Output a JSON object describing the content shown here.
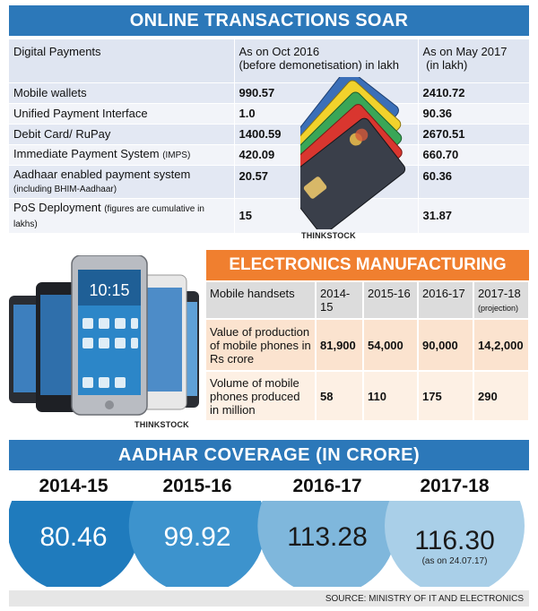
{
  "digital_payments": {
    "title": "ONLINE TRANSACTIONS SOAR",
    "header": {
      "col1": "Digital Payments",
      "col2_line1": "As on Oct 2016",
      "col2_line2": "(before demonetisation) in lakh",
      "col3_line1": "As on May 2017",
      "col3_line2": " (in lakh)"
    },
    "rows": [
      {
        "label": "Mobile wallets",
        "sub": "",
        "oct2016": "990.57",
        "may2017": "2410.72"
      },
      {
        "label": "Unified Payment Interface",
        "sub": "",
        "oct2016": "1.0",
        "may2017": "90.36"
      },
      {
        "label": "Debit Card/ RuPay",
        "sub": "",
        "oct2016": "1400.59",
        "may2017": "2670.51"
      },
      {
        "label": "Immediate Payment System",
        "sub": "(IMPS)",
        "oct2016": "420.09",
        "may2017": "660.70"
      },
      {
        "label": "Aadhaar enabled payment system",
        "sub": "(including BHIM-Aadhaar)",
        "oct2016": "20.57",
        "may2017": "60.36"
      },
      {
        "label": "PoS Deployment",
        "sub": "(figures are cumulative in lakhs)",
        "oct2016": "15",
        "may2017": "31.87"
      }
    ],
    "photo_credit": "THINKSTOCK"
  },
  "electronics": {
    "title": "ELECTRONICS MANUFACTURING",
    "photo_credit": "THINKSTOCK",
    "header": {
      "col1": "Mobile handsets",
      "years": [
        "2014-15",
        "2015-16",
        "2016-17",
        "2017-18"
      ],
      "projection_note": "(projection)"
    },
    "rows": [
      {
        "label": "Value of production of mobile phones in Rs crore",
        "values": [
          "81,900",
          "54,000",
          "90,000",
          "14,2,000"
        ]
      },
      {
        "label": "Volume of mobile phones produced in million",
        "values": [
          "58",
          "110",
          "175",
          "290"
        ]
      }
    ]
  },
  "aadhar": {
    "title": "AADHAR COVERAGE (IN CRORE)",
    "note": "(as on 24.07.17)",
    "colors": [
      "#1f7bbd",
      "#3d93cd",
      "#7fb7dc",
      "#a9cfe8"
    ]
  },
  "chart_data": {
    "type": "bar",
    "title": "AADHAR COVERAGE (IN CRORE)",
    "categories": [
      "2014-15",
      "2015-16",
      "2016-17",
      "2017-18"
    ],
    "values": [
      80.46,
      99.92,
      113.28,
      116.3
    ],
    "labels": [
      "80.46",
      "99.92",
      "113.28",
      "116.30"
    ],
    "annotations": [
      "",
      "",
      "",
      "(as on 24.07.17)"
    ]
  },
  "source": "SOURCE: MINISTRY OF IT AND ELECTRONICS"
}
